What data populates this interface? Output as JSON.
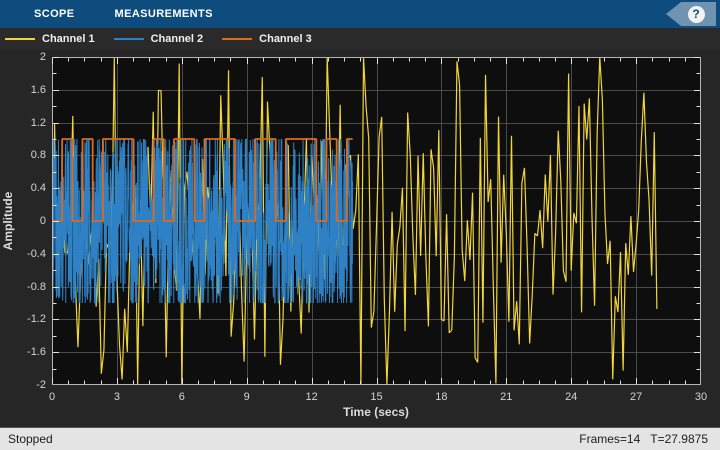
{
  "toolbar": {
    "tabs": [
      {
        "label": "SCOPE"
      },
      {
        "label": "MEASUREMENTS"
      }
    ],
    "help_icon": "?"
  },
  "legend": {
    "items": [
      {
        "label": "Channel 1",
        "color": "#f1d53a"
      },
      {
        "label": "Channel 2",
        "color": "#2e81c4"
      },
      {
        "label": "Channel 3",
        "color": "#dd6a1e"
      }
    ]
  },
  "status_bar": {
    "state": "Stopped",
    "frames_label": "Frames=14",
    "time_label": "T=27.9875"
  },
  "chart_data": {
    "type": "line",
    "title": "",
    "xlabel": "Time (secs)",
    "ylabel": "Amplitude",
    "xlim": [
      0,
      30
    ],
    "ylim": [
      -2,
      2
    ],
    "xticks": {
      "major": [
        0,
        3,
        6,
        9,
        12,
        15,
        18,
        21,
        24,
        27,
        30
      ],
      "minor_per_major": 3
    },
    "yticks": {
      "major": [
        2,
        1.6,
        1.2,
        0.8,
        0.4,
        0,
        -0.4,
        -0.8,
        -1.2,
        -1.6,
        -2
      ],
      "minor_per_major": 1
    },
    "grid": true,
    "legend_position": "top-strip",
    "background": "#0e0e0e",
    "grid_color": "#4b4b4b",
    "frame_color": "#b5b5b5",
    "tick_color": "#e0e0e0",
    "seed": 1337,
    "series": [
      {
        "name": "Channel 1",
        "color": "#f1d53a",
        "kind": "noise",
        "distribution": "triangular",
        "t_start": 0,
        "t_end": 27.99,
        "dt": 0.12,
        "amplitude": 2.0,
        "spread": 2.6,
        "line_width": 1.2
      },
      {
        "name": "Channel 2",
        "color": "#2e81c4",
        "kind": "noise",
        "distribution": "clipped-uniform",
        "t_start": 0,
        "t_end": 13.9,
        "dt": 0.012,
        "amplitude": 1.0,
        "spread": 1.15,
        "line_width": 1.0
      },
      {
        "name": "Channel 3",
        "color": "#dd6a1e",
        "kind": "random-bits",
        "t_start": 0,
        "t_end": 13.9,
        "bit_duration": 0.47,
        "low": 0,
        "high": 1,
        "line_width": 1.8
      }
    ]
  }
}
